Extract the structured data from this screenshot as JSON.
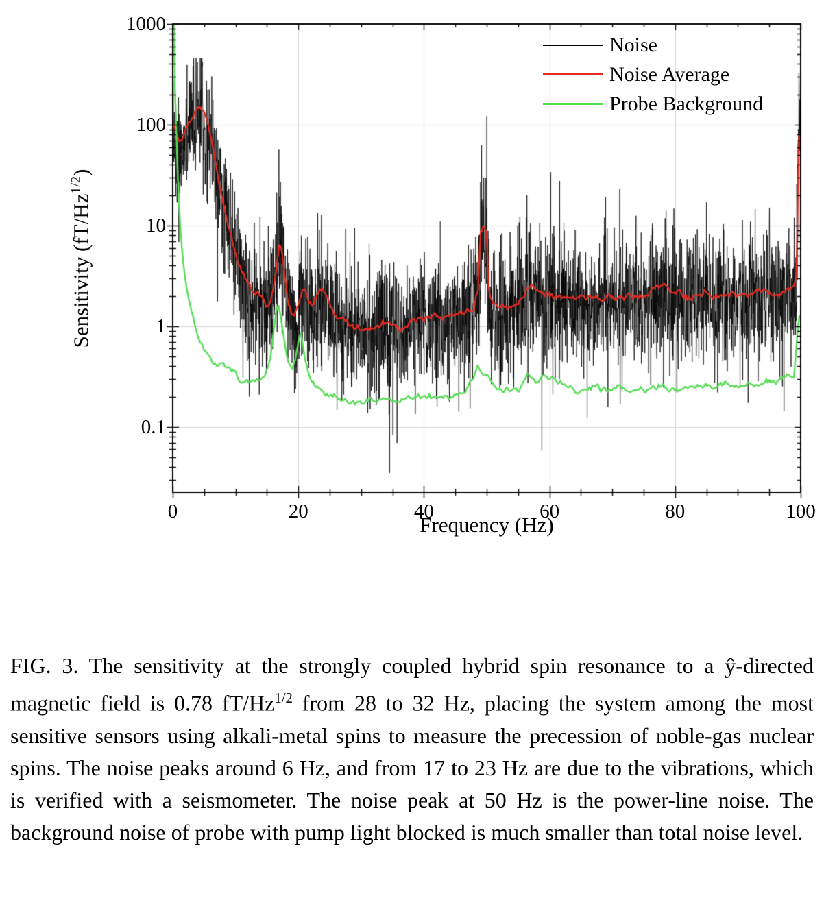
{
  "figure": {
    "caption": {
      "part1": "FIG. 3.  The sensitivity at the strongly coupled hybrid spin resonance to a ŷ-directed magnetic field is 0.78 fT/Hz",
      "sup": "1/2",
      "part2": " from 28 to 32 Hz, placing the system among the most sensitive sensors using alkali-metal spins to measure the precession of noble-gas nuclear spins. The noise peaks around 6 Hz, and from 17 to 23 Hz are due to the vibrations, which is verified with a seismometer. The noise peak at 50 Hz is the power-line noise. The background noise of probe with pump light blocked is much smaller than total noise level."
    }
  },
  "chart_data": {
    "type": "line",
    "title": "",
    "xlabel": "Frequency (Hz)",
    "ylabel_parts": {
      "main": "Sensitivity (fT/Hz",
      "sup": "1/2",
      "end": ")"
    },
    "xlim": [
      0,
      100
    ],
    "ylim_log": [
      0.0225,
      1000
    ],
    "x_minor_step": 5,
    "grid": true,
    "grid_color": "#d4d4d4",
    "axis_color": "#000000",
    "legend_position": "top-right-inside",
    "x_ticks": [
      {
        "value": 0,
        "label": "0"
      },
      {
        "value": 20,
        "label": "20"
      },
      {
        "value": 40,
        "label": "40"
      },
      {
        "value": 60,
        "label": "60"
      },
      {
        "value": 80,
        "label": "80"
      },
      {
        "value": 100,
        "label": "100"
      }
    ],
    "y_ticks": [
      {
        "value": 1000,
        "label": "1000"
      },
      {
        "value": 100,
        "label": "100"
      },
      {
        "value": 10,
        "label": "10"
      },
      {
        "value": 1,
        "label": "1"
      },
      {
        "value": 0.1,
        "label": "0.1"
      }
    ],
    "noise_model": {
      "sigma_decades": 0.33,
      "center_shift_decades": -0.03,
      "down_spike_prob": 0.012,
      "down_spike_extra_decades": [
        0.5,
        1.1
      ],
      "floor": 0.035,
      "ceiling": 460,
      "spikes": [
        [
          42.6,
          11
        ],
        [
          49.0,
          27
        ],
        [
          50.0,
          122
        ],
        [
          56.8,
          8.5
        ],
        [
          78.6,
          7.5
        ],
        [
          85.0,
          17
        ],
        [
          99.8,
          55
        ]
      ]
    },
    "series": [
      {
        "name": "Noise",
        "color": "#000000",
        "width": 0.8,
        "type": "noisy-band",
        "based_on": "Noise Average"
      },
      {
        "name": "Noise Average",
        "color": "#e8291f",
        "width": 2.2,
        "type": "line",
        "points": [
          [
            0.2,
            100
          ],
          [
            0.5,
            85
          ],
          [
            1,
            68
          ],
          [
            1.5,
            72
          ],
          [
            2,
            88
          ],
          [
            2.5,
            100
          ],
          [
            3,
            118
          ],
          [
            3.5,
            135
          ],
          [
            4,
            150
          ],
          [
            4.5,
            148
          ],
          [
            5,
            135
          ],
          [
            5.5,
            110
          ],
          [
            6,
            78
          ],
          [
            6.5,
            55
          ],
          [
            7,
            38
          ],
          [
            7.5,
            24
          ],
          [
            8,
            16
          ],
          [
            8.5,
            12
          ],
          [
            9,
            9
          ],
          [
            9.5,
            7
          ],
          [
            10,
            5.2
          ],
          [
            10.5,
            4.2
          ],
          [
            11,
            3.6
          ],
          [
            11.5,
            3.0
          ],
          [
            12,
            2.6
          ],
          [
            12.5,
            2.4
          ],
          [
            13,
            2.2
          ],
          [
            13.5,
            2.3
          ],
          [
            14,
            2.0
          ],
          [
            14.5,
            1.7
          ],
          [
            15,
            1.55
          ],
          [
            15.5,
            1.7
          ],
          [
            16,
            2.2
          ],
          [
            16.5,
            3.6
          ],
          [
            17,
            6.2
          ],
          [
            17.3,
            5.5
          ],
          [
            17.8,
            3.0
          ],
          [
            18.3,
            1.8
          ],
          [
            18.8,
            1.4
          ],
          [
            19.3,
            1.35
          ],
          [
            19.8,
            1.6
          ],
          [
            20.3,
            2.1
          ],
          [
            20.8,
            2.4
          ],
          [
            21.3,
            2.1
          ],
          [
            21.8,
            1.6
          ],
          [
            22.3,
            1.5
          ],
          [
            22.8,
            1.9
          ],
          [
            23.3,
            2.4
          ],
          [
            23.8,
            2.5
          ],
          [
            24.3,
            2.2
          ],
          [
            24.8,
            1.8
          ],
          [
            25.3,
            1.5
          ],
          [
            26,
            1.3
          ],
          [
            27,
            1.15
          ],
          [
            28,
            1.05
          ],
          [
            29,
            1.0
          ],
          [
            30,
            0.95
          ],
          [
            31,
            0.9
          ],
          [
            32,
            0.93
          ],
          [
            33,
            1.0
          ],
          [
            34,
            1.08
          ],
          [
            34.5,
            1.12
          ],
          [
            35,
            1.05
          ],
          [
            36,
            0.95
          ],
          [
            37,
            0.97
          ],
          [
            38,
            1.05
          ],
          [
            39,
            1.1
          ],
          [
            40,
            1.15
          ],
          [
            41,
            1.2
          ],
          [
            42,
            1.25
          ],
          [
            43,
            1.22
          ],
          [
            44,
            1.26
          ],
          [
            45,
            1.3
          ],
          [
            46,
            1.32
          ],
          [
            47,
            1.38
          ],
          [
            48,
            1.55
          ],
          [
            48.6,
            2.2
          ],
          [
            49,
            8.8
          ],
          [
            49.6,
            9.2
          ],
          [
            50,
            8.6
          ],
          [
            50.3,
            2.2
          ],
          [
            51,
            1.7
          ],
          [
            52,
            1.6
          ],
          [
            53,
            1.55
          ],
          [
            54,
            1.6
          ],
          [
            55,
            1.75
          ],
          [
            56,
            2.05
          ],
          [
            57,
            2.4
          ],
          [
            57.5,
            2.45
          ],
          [
            58,
            2.3
          ],
          [
            59,
            2.15
          ],
          [
            60,
            2.05
          ],
          [
            61,
            1.95
          ],
          [
            62,
            2.0
          ],
          [
            63,
            1.92
          ],
          [
            64,
            1.88
          ],
          [
            65,
            1.92
          ],
          [
            66,
            1.86
          ],
          [
            67,
            1.92
          ],
          [
            68,
            1.84
          ],
          [
            69,
            1.88
          ],
          [
            70,
            1.92
          ],
          [
            71,
            1.84
          ],
          [
            72,
            1.88
          ],
          [
            73,
            1.92
          ],
          [
            74,
            1.96
          ],
          [
            75,
            2.02
          ],
          [
            76,
            2.12
          ],
          [
            77,
            2.32
          ],
          [
            78,
            2.52
          ],
          [
            79,
            2.35
          ],
          [
            80,
            2.15
          ],
          [
            81,
            2.02
          ],
          [
            82,
            1.96
          ],
          [
            83,
            2.0
          ],
          [
            84,
            2.06
          ],
          [
            85,
            2.12
          ],
          [
            86,
            2.02
          ],
          [
            87,
            1.96
          ],
          [
            88,
            2.02
          ],
          [
            89,
            2.1
          ],
          [
            90,
            2.02
          ],
          [
            91,
            1.96
          ],
          [
            92,
            2.02
          ],
          [
            93,
            2.1
          ],
          [
            94,
            2.2
          ],
          [
            95,
            2.12
          ],
          [
            96,
            2.02
          ],
          [
            97,
            2.12
          ],
          [
            98,
            2.3
          ],
          [
            99,
            2.6
          ],
          [
            99.3,
            3.5
          ],
          [
            99.5,
            12
          ],
          [
            99.7,
            88
          ],
          [
            100,
            80
          ]
        ]
      },
      {
        "name": "Probe Background",
        "color": "#55dd55",
        "width": 2.4,
        "type": "line",
        "points": [
          [
            0.15,
            1000
          ],
          [
            0.3,
            320
          ],
          [
            0.5,
            110
          ],
          [
            0.7,
            45
          ],
          [
            0.9,
            22
          ],
          [
            1.1,
            12
          ],
          [
            1.4,
            6.5
          ],
          [
            1.8,
            3.6
          ],
          [
            2.2,
            2.4
          ],
          [
            2.6,
            1.8
          ],
          [
            3,
            1.4
          ],
          [
            3.5,
            1.05
          ],
          [
            4,
            0.82
          ],
          [
            4.5,
            0.66
          ],
          [
            5,
            0.56
          ],
          [
            5.5,
            0.5
          ],
          [
            6,
            0.46
          ],
          [
            6.5,
            0.43
          ],
          [
            7,
            0.41
          ],
          [
            7.5,
            0.43
          ],
          [
            8,
            0.41
          ],
          [
            8.5,
            0.39
          ],
          [
            9,
            0.37
          ],
          [
            9.5,
            0.38
          ],
          [
            10,
            0.35
          ],
          [
            10.5,
            0.33
          ],
          [
            11,
            0.31
          ],
          [
            11.5,
            0.3
          ],
          [
            12,
            0.29
          ],
          [
            12.5,
            0.285
          ],
          [
            13,
            0.28
          ],
          [
            13.5,
            0.28
          ],
          [
            14,
            0.29
          ],
          [
            14.5,
            0.31
          ],
          [
            15,
            0.34
          ],
          [
            15.5,
            0.46
          ],
          [
            16,
            0.85
          ],
          [
            16.5,
            1.45
          ],
          [
            16.8,
            1.65
          ],
          [
            17.1,
            1.35
          ],
          [
            17.5,
            0.92
          ],
          [
            18,
            0.56
          ],
          [
            18.5,
            0.43
          ],
          [
            19,
            0.39
          ],
          [
            19.5,
            0.46
          ],
          [
            20,
            0.72
          ],
          [
            20.4,
            0.88
          ],
          [
            20.8,
            0.62
          ],
          [
            21.3,
            0.42
          ],
          [
            21.8,
            0.31
          ],
          [
            22.3,
            0.27
          ],
          [
            23,
            0.24
          ],
          [
            24,
            0.215
          ],
          [
            25,
            0.2
          ],
          [
            26,
            0.19
          ],
          [
            27,
            0.185
          ],
          [
            28,
            0.18
          ],
          [
            29,
            0.175
          ],
          [
            30,
            0.17
          ],
          [
            31,
            0.172
          ],
          [
            32,
            0.178
          ],
          [
            33,
            0.182
          ],
          [
            34,
            0.19
          ],
          [
            35,
            0.182
          ],
          [
            36,
            0.18
          ],
          [
            37,
            0.19
          ],
          [
            38,
            0.182
          ],
          [
            39,
            0.19
          ],
          [
            40,
            0.192
          ],
          [
            41,
            0.2
          ],
          [
            42,
            0.19
          ],
          [
            43,
            0.2
          ],
          [
            44,
            0.192
          ],
          [
            45,
            0.2
          ],
          [
            46,
            0.21
          ],
          [
            47,
            0.22
          ],
          [
            48,
            0.3
          ],
          [
            48.5,
            0.38
          ],
          [
            49,
            0.35
          ],
          [
            49.5,
            0.3
          ],
          [
            50,
            0.33
          ],
          [
            50.5,
            0.28
          ],
          [
            51,
            0.25
          ],
          [
            52,
            0.23
          ],
          [
            53,
            0.24
          ],
          [
            54,
            0.25
          ],
          [
            55,
            0.27
          ],
          [
            56,
            0.31
          ],
          [
            56.5,
            0.35
          ],
          [
            57,
            0.33
          ],
          [
            58,
            0.3
          ],
          [
            59,
            0.32
          ],
          [
            60,
            0.3
          ],
          [
            61,
            0.28
          ],
          [
            62,
            0.26
          ],
          [
            63,
            0.25
          ],
          [
            64,
            0.24
          ],
          [
            65,
            0.23
          ],
          [
            66,
            0.24
          ],
          [
            67,
            0.25
          ],
          [
            68,
            0.24
          ],
          [
            69,
            0.23
          ],
          [
            70,
            0.26
          ],
          [
            71,
            0.25
          ],
          [
            72,
            0.24
          ],
          [
            73,
            0.23
          ],
          [
            74,
            0.24
          ],
          [
            75,
            0.22
          ],
          [
            76,
            0.23
          ],
          [
            77,
            0.24
          ],
          [
            78,
            0.25
          ],
          [
            79,
            0.24
          ],
          [
            80,
            0.23
          ],
          [
            81,
            0.24
          ],
          [
            82,
            0.25
          ],
          [
            83,
            0.24
          ],
          [
            84,
            0.25
          ],
          [
            85,
            0.26
          ],
          [
            86,
            0.25
          ],
          [
            87,
            0.26
          ],
          [
            88,
            0.27
          ],
          [
            89,
            0.26
          ],
          [
            90,
            0.25
          ],
          [
            91,
            0.26
          ],
          [
            92,
            0.27
          ],
          [
            93,
            0.26
          ],
          [
            94,
            0.27
          ],
          [
            95,
            0.28
          ],
          [
            96,
            0.29
          ],
          [
            97,
            0.3
          ],
          [
            98,
            0.32
          ],
          [
            99,
            0.3
          ],
          [
            99.5,
            0.85
          ],
          [
            100,
            1.5
          ]
        ]
      }
    ]
  }
}
